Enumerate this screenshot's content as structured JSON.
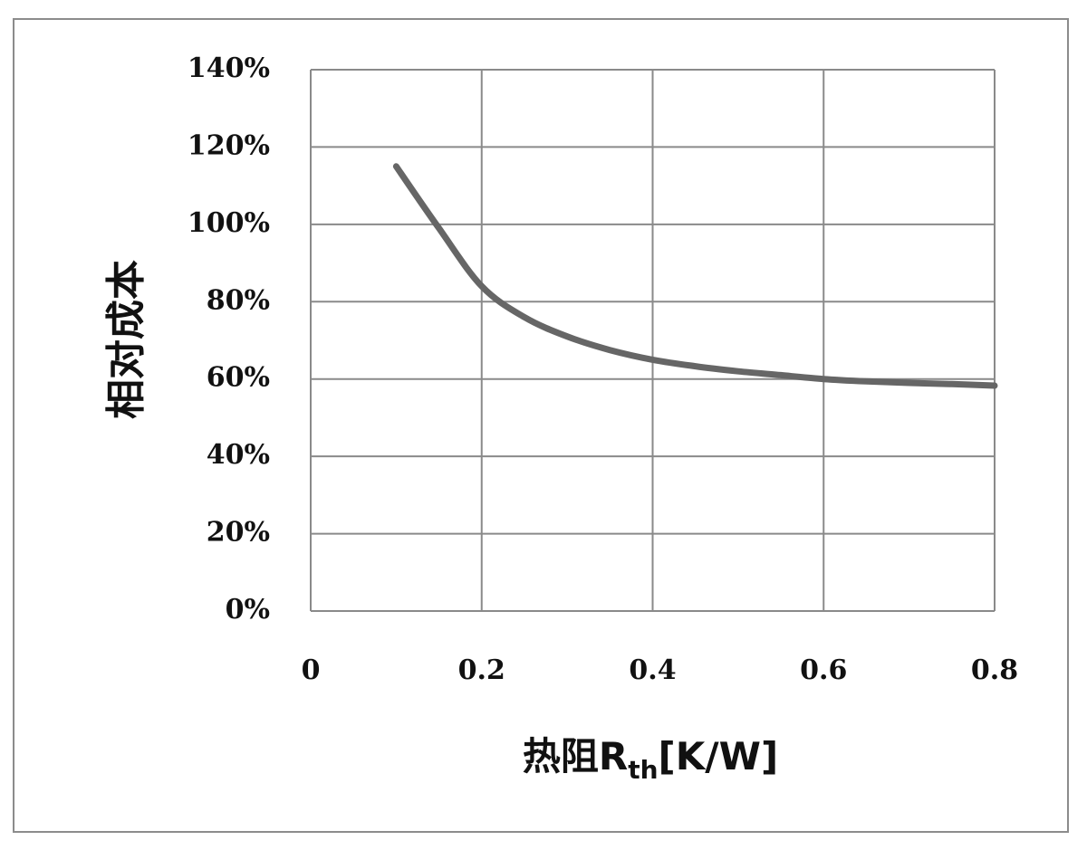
{
  "chart_data": {
    "type": "line",
    "title": "",
    "ylabel": "相对成本",
    "xlabel": {
      "prefix": "热阻R",
      "subscript": "th",
      "suffix": "[K/W]"
    },
    "xlim": [
      0,
      0.8
    ],
    "ylim": [
      0,
      1.4
    ],
    "x_ticks": [
      {
        "value": 0,
        "label": "0"
      },
      {
        "value": 0.2,
        "label": "0.2"
      },
      {
        "value": 0.4,
        "label": "0.4"
      },
      {
        "value": 0.6,
        "label": "0.6"
      },
      {
        "value": 0.8,
        "label": "0.8"
      }
    ],
    "y_ticks": [
      {
        "value": 0,
        "label": "0%"
      },
      {
        "value": 0.2,
        "label": "20%"
      },
      {
        "value": 0.4,
        "label": "40%"
      },
      {
        "value": 0.6,
        "label": "60%"
      },
      {
        "value": 0.8,
        "label": "80%"
      },
      {
        "value": 1.0,
        "label": "100%"
      },
      {
        "value": 1.2,
        "label": "120%"
      },
      {
        "value": 1.4,
        "label": "140%"
      }
    ],
    "grid": true,
    "legend": "none",
    "series": [
      {
        "color": "#666666",
        "x": [
          0.1,
          0.15,
          0.2,
          0.25,
          0.3,
          0.35,
          0.4,
          0.45,
          0.5,
          0.55,
          0.6,
          0.65,
          0.7,
          0.75,
          0.8
        ],
        "y": [
          1.15,
          0.99,
          0.84,
          0.76,
          0.71,
          0.675,
          0.65,
          0.633,
          0.62,
          0.61,
          0.6,
          0.594,
          0.59,
          0.587,
          0.583
        ]
      }
    ]
  }
}
